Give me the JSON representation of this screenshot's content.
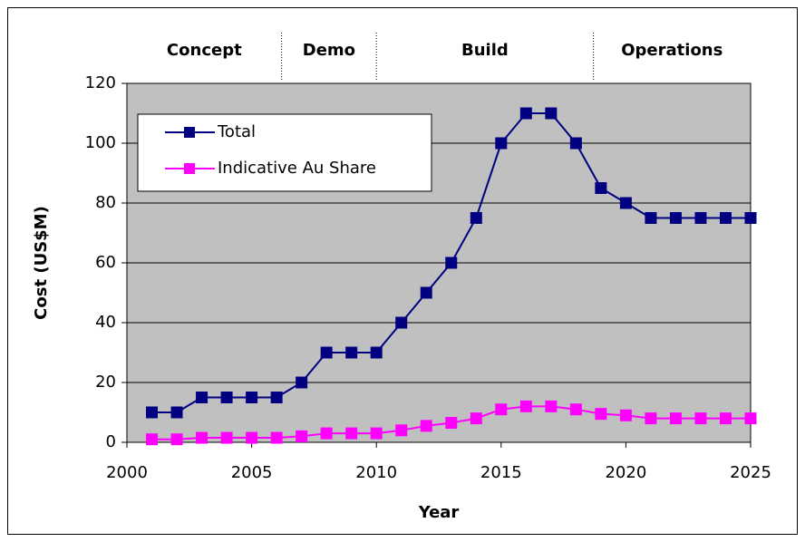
{
  "chart_data": {
    "type": "line",
    "xlabel": "Year",
    "ylabel": "Cost (US$M)",
    "x": [
      2001,
      2002,
      2003,
      2004,
      2005,
      2006,
      2007,
      2008,
      2009,
      2010,
      2011,
      2012,
      2013,
      2014,
      2015,
      2016,
      2017,
      2018,
      2019,
      2020,
      2021,
      2022,
      2023,
      2024,
      2025
    ],
    "series": [
      {
        "name": "Total",
        "color": "#000080",
        "values": [
          10,
          10,
          15,
          15,
          15,
          15,
          20,
          30,
          30,
          30,
          40,
          50,
          60,
          75,
          100,
          110,
          110,
          100,
          85,
          80,
          75,
          75,
          75,
          75,
          75
        ]
      },
      {
        "name": "Indicative Au Share",
        "color": "#ff00ff",
        "values": [
          1,
          1,
          1.5,
          1.5,
          1.5,
          1.5,
          2,
          3,
          3,
          3,
          4,
          5.5,
          6.5,
          8,
          11,
          12,
          12,
          11,
          9.5,
          9,
          8,
          8,
          8,
          8,
          8
        ]
      }
    ],
    "xlim": [
      2000,
      2025
    ],
    "xticks": [
      2000,
      2005,
      2010,
      2015,
      2020,
      2025
    ],
    "ylim": [
      0,
      120
    ],
    "yticks": [
      0,
      20,
      40,
      60,
      80,
      100,
      120
    ],
    "grid": true,
    "legend": "upper left",
    "plot_background": "#c0c0c0",
    "phases": [
      "Concept",
      "Demo",
      "Build",
      "Operations"
    ],
    "phase_boundaries": [
      2006.2,
      2010,
      2018.7
    ]
  }
}
